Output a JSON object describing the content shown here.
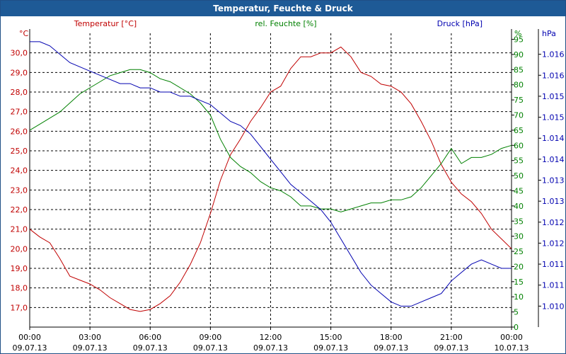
{
  "window": {
    "title": "Temperatur, Feuchte & Druck"
  },
  "colors": {
    "temperature": "#c00000",
    "humidity": "#008000",
    "pressure": "#0000b0",
    "axis": "#000000",
    "grid": "#000000"
  },
  "chart_data": {
    "type": "line",
    "grid": true,
    "x": {
      "ticks": [
        {
          "time": "00:00",
          "date": "09.07.13"
        },
        {
          "time": "03:00",
          "date": "09.07.13"
        },
        {
          "time": "06:00",
          "date": "09.07.13"
        },
        {
          "time": "09:00",
          "date": "09.07.13"
        },
        {
          "time": "12:00",
          "date": "09.07.13"
        },
        {
          "time": "15:00",
          "date": "09.07.13"
        },
        {
          "time": "18:00",
          "date": "09.07.13"
        },
        {
          "time": "21:00",
          "date": "09.07.13"
        },
        {
          "time": "00:00",
          "date": "10.07.13"
        }
      ],
      "range_hours": [
        0,
        24
      ]
    },
    "axes": {
      "temperature": {
        "label": "Temperatur [°C]",
        "unit": "°C",
        "range": [
          16.0,
          31.0
        ],
        "ticks": [
          "17,0",
          "18,0",
          "19,0",
          "20,0",
          "21,0",
          "22,0",
          "23,0",
          "24,0",
          "25,0",
          "26,0",
          "27,0",
          "28,0",
          "29,0",
          "30,0"
        ]
      },
      "humidity": {
        "label": "rel. Feuchte [%]",
        "unit": "%",
        "range": [
          0,
          97
        ],
        "ticks": [
          "0",
          "5",
          "10",
          "15",
          "20",
          "25",
          "30",
          "35",
          "40",
          "45",
          "50",
          "55",
          "60",
          "65",
          "70",
          "75",
          "80",
          "85",
          "90",
          "95"
        ]
      },
      "pressure": {
        "label": "Druck [hPa]",
        "unit": "hPa",
        "range": [
          1009.5,
          1016.5
        ],
        "ticks": [
          "1.010",
          "1.011",
          "1.011",
          "1.012",
          "1.012",
          "1.013",
          "1.013",
          "1.014",
          "1.014",
          "1.015",
          "1.015",
          "1.016",
          "1.016"
        ]
      }
    },
    "series": [
      {
        "name": "Temperatur [°C]",
        "axis": "temperature",
        "x": [
          0,
          0.5,
          1,
          1.5,
          2,
          2.5,
          3,
          3.5,
          4,
          4.5,
          5,
          5.5,
          6,
          6.5,
          7,
          7.5,
          8,
          8.5,
          9,
          9.5,
          10,
          10.5,
          11,
          11.5,
          12,
          12.5,
          13,
          13.5,
          14,
          14.5,
          15,
          15.5,
          16,
          16.5,
          17,
          17.5,
          18,
          18.5,
          19,
          19.5,
          20,
          20.5,
          21,
          21.5,
          22,
          22.5,
          23,
          23.5,
          24
        ],
        "values": [
          21.0,
          20.6,
          20.3,
          19.5,
          18.6,
          18.4,
          18.2,
          17.9,
          17.5,
          17.2,
          16.9,
          16.8,
          16.9,
          17.2,
          17.6,
          18.3,
          19.2,
          20.3,
          21.8,
          23.5,
          24.8,
          25.6,
          26.5,
          27.2,
          28.0,
          28.3,
          29.2,
          29.8,
          29.8,
          30.0,
          30.0,
          30.3,
          29.8,
          29.0,
          28.8,
          28.4,
          28.3,
          28.0,
          27.4,
          26.5,
          25.5,
          24.3,
          23.4,
          22.8,
          22.4,
          21.8,
          21.0,
          20.5,
          20.0
        ]
      },
      {
        "name": "rel. Feuchte [%]",
        "axis": "humidity",
        "x": [
          0,
          0.5,
          1,
          1.5,
          2,
          2.5,
          3,
          3.5,
          4,
          4.5,
          5,
          5.5,
          6,
          6.5,
          7,
          7.5,
          8,
          8.5,
          9,
          9.5,
          10,
          10.5,
          11,
          11.5,
          12,
          12.5,
          13,
          13.5,
          14,
          14.5,
          15,
          15.5,
          16,
          16.5,
          17,
          17.5,
          18,
          18.5,
          19,
          19.5,
          20,
          20.5,
          21,
          21.5,
          22,
          22.5,
          23,
          23.5,
          24
        ],
        "values": [
          65,
          67,
          69,
          71,
          74,
          77,
          79,
          81,
          83,
          84,
          85,
          85,
          84,
          82,
          81,
          79,
          77,
          74,
          70,
          62,
          56,
          53,
          51,
          48,
          46,
          45,
          43,
          40,
          40,
          39,
          39,
          38,
          39,
          40,
          41,
          41,
          42,
          42,
          43,
          46,
          50,
          54,
          59,
          54,
          56,
          56,
          57,
          59,
          60
        ]
      },
      {
        "name": "Druck [hPa]",
        "axis": "pressure",
        "x": [
          0,
          0.5,
          1,
          1.5,
          2,
          2.5,
          3,
          3.5,
          4,
          4.5,
          5,
          5.5,
          6,
          6.5,
          7,
          7.5,
          8,
          8.5,
          9,
          9.5,
          10,
          10.5,
          11,
          11.5,
          12,
          12.5,
          13,
          13.5,
          14,
          14.5,
          15,
          15.5,
          16,
          16.5,
          17,
          17.5,
          18,
          18.5,
          19,
          19.5,
          20,
          20.5,
          21,
          21.5,
          22,
          22.5,
          23,
          23.5,
          24
        ],
        "values": [
          1016.3,
          1016.3,
          1016.2,
          1016.0,
          1015.8,
          1015.7,
          1015.6,
          1015.5,
          1015.4,
          1015.3,
          1015.3,
          1015.2,
          1015.2,
          1015.1,
          1015.1,
          1015.0,
          1015.0,
          1014.9,
          1014.8,
          1014.6,
          1014.4,
          1014.3,
          1014.1,
          1013.8,
          1013.5,
          1013.2,
          1012.9,
          1012.7,
          1012.5,
          1012.3,
          1012.0,
          1011.6,
          1011.2,
          1010.8,
          1010.5,
          1010.3,
          1010.1,
          1010.0,
          1010.0,
          1010.1,
          1010.2,
          1010.3,
          1010.6,
          1010.8,
          1011.0,
          1011.1,
          1011.0,
          1010.9,
          1010.9
        ]
      }
    ]
  }
}
